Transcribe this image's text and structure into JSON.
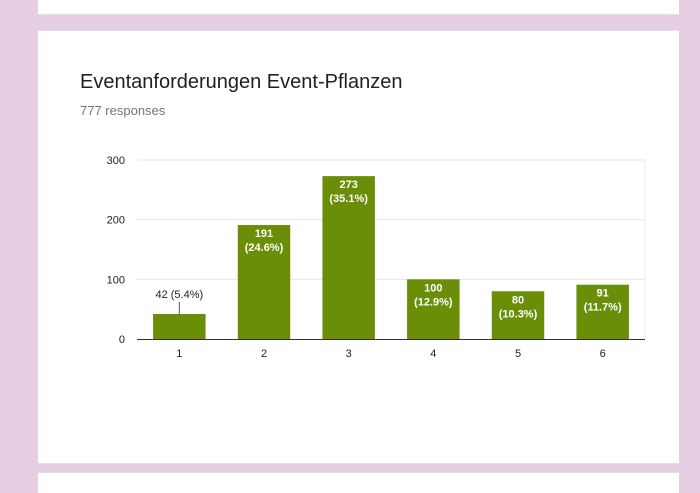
{
  "question": {
    "title": "Eventanforderungen Event-Pflanzen",
    "responses": "777 responses"
  },
  "colors": {
    "bar": "#6a8e08",
    "page_background": "#e6cde3"
  },
  "chart_data": {
    "type": "bar",
    "title": "Eventanforderungen Event-Pflanzen",
    "xlabel": "",
    "ylabel": "",
    "categories": [
      "1",
      "2",
      "3",
      "4",
      "5",
      "6"
    ],
    "values": [
      42,
      191,
      273,
      100,
      80,
      91
    ],
    "value_labels": [
      [
        "42 (5.4%)"
      ],
      [
        "191",
        "(24.6%)"
      ],
      [
        "273",
        "(35.1%)"
      ],
      [
        "100",
        "(12.9%)"
      ],
      [
        "80",
        "(10.3%)"
      ],
      [
        "91",
        "(11.7%)"
      ]
    ],
    "label_inside": [
      false,
      true,
      true,
      true,
      true,
      true
    ],
    "yticks": [
      0,
      100,
      200,
      300
    ],
    "ylim": [
      0,
      300
    ],
    "grid": true,
    "legend": "none"
  }
}
